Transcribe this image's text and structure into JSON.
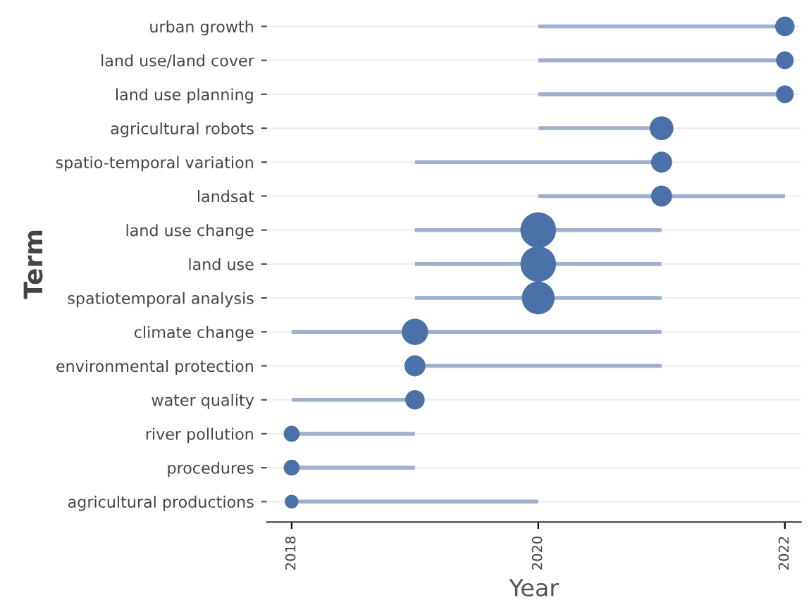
{
  "chart_data": {
    "type": "bubble",
    "orientation": "horizontal",
    "xlabel": "Year",
    "ylabel": "Term",
    "categories": [
      "urban growth",
      "land use/land cover",
      "land use planning",
      "agricultural robots",
      "spatio-temporal variation",
      "landsat",
      "land use change",
      "land use",
      "spatiotemporal analysis",
      "climate change",
      "environmental protection",
      "water quality",
      "river pollution",
      "procedures",
      "agricultural productions"
    ],
    "values": [
      2022,
      2022,
      2022,
      2021,
      2021,
      2021,
      2020,
      2020,
      2020,
      2019,
      2019,
      2019,
      2018,
      2018,
      2018
    ],
    "errors": [
      [
        2020,
        2022
      ],
      [
        2020,
        2022
      ],
      [
        2020,
        2022
      ],
      [
        2020,
        2021
      ],
      [
        2019,
        2021
      ],
      [
        2020,
        2022
      ],
      [
        2019,
        2021
      ],
      [
        2019,
        2021
      ],
      [
        2019,
        2021
      ],
      [
        2018,
        2021
      ],
      [
        2019,
        2021
      ],
      [
        2018,
        2019
      ],
      [
        2018,
        2019
      ],
      [
        2018,
        2019
      ],
      [
        2018,
        2020
      ]
    ],
    "sizes": [
      0.3,
      0.25,
      0.25,
      0.45,
      0.35,
      0.35,
      1,
      1,
      0.85,
      0.55,
      0.35,
      0.3,
      0.2,
      0.2,
      0.15
    ],
    "color": "#4a72a8",
    "xlim": [
      2017.8,
      2022.13
    ],
    "xticks": [
      2018,
      2020,
      2022
    ],
    "grid": "y"
  }
}
